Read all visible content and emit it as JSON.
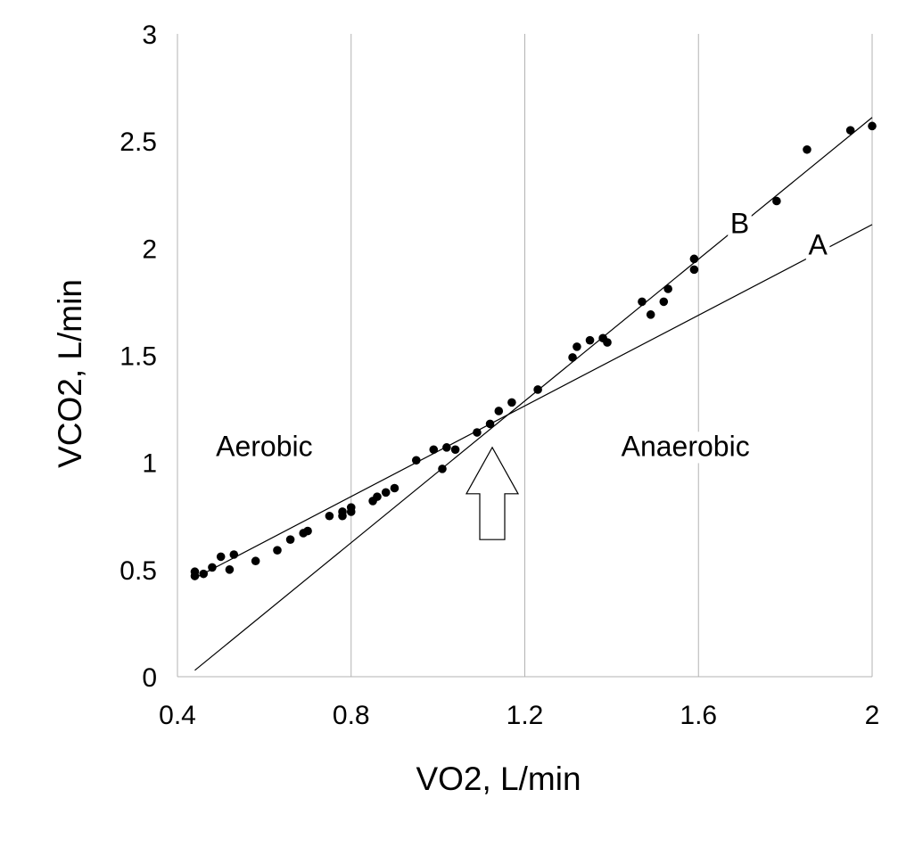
{
  "chart_data": {
    "type": "scatter",
    "title": "",
    "xlabel": "VO2, L/min",
    "ylabel": "VCO2, L/min",
    "xlim": [
      0.4,
      2.0
    ],
    "ylim": [
      0,
      3
    ],
    "xticks": [
      {
        "value": 0.4,
        "label": "0.4"
      },
      {
        "value": 0.8,
        "label": "0.8"
      },
      {
        "value": 1.2,
        "label": "1.2"
      },
      {
        "value": 1.6,
        "label": "1.6"
      },
      {
        "value": 2.0,
        "label": "2"
      }
    ],
    "yticks": [
      {
        "value": 0,
        "label": "0"
      },
      {
        "value": 0.5,
        "label": "0.5"
      },
      {
        "value": 1,
        "label": "1"
      },
      {
        "value": 1.5,
        "label": "1.5"
      },
      {
        "value": 2,
        "label": "2"
      },
      {
        "value": 2.5,
        "label": "2.5"
      },
      {
        "value": 3,
        "label": "3"
      }
    ],
    "grid": "vertical",
    "legend": "none",
    "points": [
      [
        0.44,
        0.49
      ],
      [
        0.44,
        0.47
      ],
      [
        0.46,
        0.48
      ],
      [
        0.48,
        0.51
      ],
      [
        0.5,
        0.56
      ],
      [
        0.52,
        0.5
      ],
      [
        0.53,
        0.57
      ],
      [
        0.58,
        0.54
      ],
      [
        0.63,
        0.59
      ],
      [
        0.66,
        0.64
      ],
      [
        0.69,
        0.67
      ],
      [
        0.7,
        0.68
      ],
      [
        0.75,
        0.75
      ],
      [
        0.78,
        0.75
      ],
      [
        0.78,
        0.77
      ],
      [
        0.8,
        0.77
      ],
      [
        0.8,
        0.79
      ],
      [
        0.85,
        0.82
      ],
      [
        0.86,
        0.84
      ],
      [
        0.88,
        0.86
      ],
      [
        0.9,
        0.88
      ],
      [
        0.95,
        1.01
      ],
      [
        0.99,
        1.06
      ],
      [
        1.01,
        0.97
      ],
      [
        1.02,
        1.07
      ],
      [
        1.04,
        1.06
      ],
      [
        1.09,
        1.14
      ],
      [
        1.12,
        1.18
      ],
      [
        1.14,
        1.24
      ],
      [
        1.17,
        1.28
      ],
      [
        1.23,
        1.34
      ],
      [
        1.31,
        1.49
      ],
      [
        1.32,
        1.54
      ],
      [
        1.35,
        1.57
      ],
      [
        1.38,
        1.58
      ],
      [
        1.39,
        1.56
      ],
      [
        1.47,
        1.75
      ],
      [
        1.49,
        1.69
      ],
      [
        1.52,
        1.75
      ],
      [
        1.53,
        1.81
      ],
      [
        1.59,
        1.95
      ],
      [
        1.59,
        1.9
      ],
      [
        1.78,
        2.22
      ],
      [
        1.85,
        2.46
      ],
      [
        1.95,
        2.55
      ],
      [
        2.0,
        2.57
      ]
    ],
    "lines": [
      {
        "name": "A",
        "x": [
          0.44,
          2.0
        ],
        "y": [
          0.46,
          2.11
        ]
      },
      {
        "name": "B",
        "x": [
          0.44,
          2.0
        ],
        "y": [
          0.03,
          2.61
        ]
      }
    ],
    "annotations": [
      {
        "text": "A",
        "x": 1.875,
        "y": 1.97
      },
      {
        "text": "B",
        "x": 1.695,
        "y": 2.07
      },
      {
        "text": "Aerobic",
        "x": 0.6,
        "y": 1.03
      },
      {
        "text": "Anaerobic",
        "x": 1.57,
        "y": 1.03
      }
    ],
    "arrow": {
      "x": 1.125,
      "y_tip": 1.07,
      "y_base": 0.64
    }
  }
}
